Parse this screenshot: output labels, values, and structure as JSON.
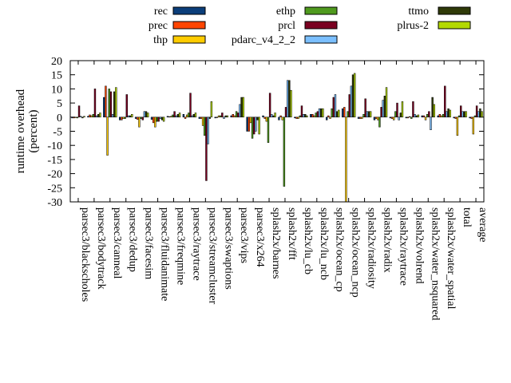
{
  "chart_data": {
    "type": "bar",
    "ylabel": "runtime overhead\n(percent)",
    "ylim": [
      -30,
      20
    ],
    "yticks": [
      20,
      15,
      10,
      5,
      0,
      -5,
      -10,
      -15,
      -20,
      -25,
      -30
    ],
    "grid": false,
    "legend_position": "top",
    "categories": [
      "parsec3/blackscholes",
      "parsec3/bodytrack",
      "parsec3/canneal",
      "parsec3/dedup",
      "parsec3/facesim",
      "parsec3/fluidanimate",
      "parsec3/freqmine",
      "parsec3/raytrace",
      "parsec3/streamcluster",
      "parsec3/swaptions",
      "parsec3/vips",
      "parsec3/x264",
      "splash2x/barnes",
      "splash2x/fft",
      "splash2x/lu_cb",
      "splash2x/lu_ncb",
      "splash2x/ocean_cp",
      "splash2x/ocean_ncp",
      "splash2x/radiosity",
      "splash2x/radix",
      "splash2x/raytrace",
      "splash2x/volrend",
      "splash2x/water_nsquared",
      "splash2x/water_spatial",
      "total",
      "average"
    ],
    "series": [
      {
        "name": "rec",
        "color": "#0b3e7a",
        "values": [
          -0.3,
          0.3,
          7.0,
          -1.0,
          -0.5,
          -0.8,
          0.3,
          1.0,
          -0.5,
          -0.3,
          0.5,
          -5.0,
          0.5,
          -1.0,
          -0.3,
          1.0,
          -1.0,
          3.0,
          -0.5,
          -1.0,
          -0.3,
          -0.3,
          0.5,
          0.5,
          -0.3,
          -0.3
        ]
      },
      {
        "name": "prec",
        "color": "#ff4500",
        "values": [
          -0.3,
          0.8,
          11.0,
          -1.0,
          -0.8,
          -2.0,
          0.2,
          -0.5,
          -0.5,
          -0.2,
          1.0,
          -5.0,
          -0.5,
          0.5,
          -0.5,
          1.0,
          0.5,
          3.5,
          -0.5,
          -0.5,
          -0.5,
          -0.3,
          0.5,
          1.0,
          -0.5,
          -0.5
        ]
      },
      {
        "name": "thp",
        "color": "#ffcc00",
        "values": [
          -0.2,
          0.5,
          -13.5,
          -0.5,
          -3.5,
          -3.5,
          0.3,
          0.8,
          -3.0,
          0.5,
          0.5,
          -2.0,
          -1.5,
          -1.0,
          -0.5,
          0.5,
          -0.5,
          -30.0,
          -0.5,
          -1.0,
          -1.0,
          0.2,
          -1.0,
          0.5,
          -6.5,
          -6.0
        ]
      },
      {
        "name": "ethp",
        "color": "#4f9a1e",
        "values": [
          -0.3,
          1.0,
          10.0,
          -0.5,
          -0.5,
          -1.5,
          0.8,
          1.5,
          -6.5,
          0.5,
          2.0,
          -7.5,
          -9.0,
          -24.5,
          0.5,
          1.5,
          3.0,
          2.0,
          1.0,
          -3.5,
          2.0,
          -0.5,
          1.0,
          1.0,
          0.5,
          0.5
        ]
      },
      {
        "name": "prcl",
        "color": "#7a0020",
        "values": [
          4.0,
          10.0,
          9.0,
          8.0,
          -1.0,
          -1.5,
          2.0,
          8.5,
          -22.5,
          1.5,
          1.5,
          -6.0,
          8.5,
          3.5,
          4.0,
          2.0,
          7.0,
          8.0,
          6.5,
          3.5,
          5.0,
          5.5,
          2.0,
          11.0,
          4.0,
          4.0
        ]
      },
      {
        "name": "pdarc_v4_2_2",
        "color": "#7bbfff",
        "values": [
          0.3,
          0.5,
          1.0,
          0.5,
          2.0,
          -0.5,
          0.5,
          0.5,
          -9.5,
          -0.5,
          4.5,
          -5.0,
          1.0,
          13.0,
          1.0,
          3.0,
          8.0,
          11.0,
          2.0,
          6.0,
          -1.0,
          1.0,
          -4.5,
          2.0,
          2.0,
          2.0
        ]
      },
      {
        "name": "ttmo",
        "color": "#2f3a08",
        "values": [
          -0.3,
          1.0,
          9.0,
          0.5,
          2.0,
          -1.0,
          1.0,
          1.0,
          -0.5,
          0.5,
          7.0,
          -1.0,
          0.5,
          13.0,
          1.0,
          3.0,
          2.0,
          15.0,
          2.0,
          7.5,
          1.5,
          0.5,
          7.0,
          3.0,
          2.0,
          3.0
        ]
      },
      {
        "name": "plrus-2",
        "color": "#b3d900",
        "values": [
          0.3,
          1.5,
          10.5,
          1.0,
          1.5,
          -1.5,
          1.5,
          1.5,
          5.5,
          0.5,
          7.0,
          -6.0,
          1.5,
          9.5,
          0.5,
          3.0,
          2.5,
          15.5,
          2.0,
          10.5,
          5.5,
          0.8,
          4.5,
          2.5,
          2.0,
          2.0
        ]
      }
    ]
  }
}
